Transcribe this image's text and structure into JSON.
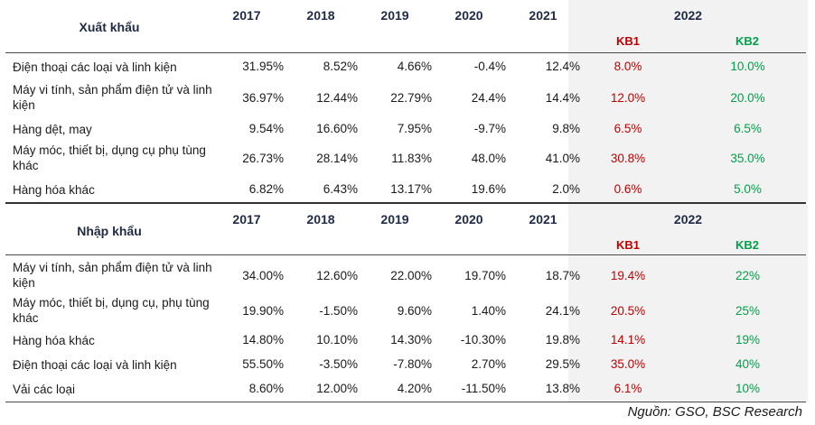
{
  "export": {
    "title": "Xuất khẩu",
    "years": [
      "2017",
      "2018",
      "2019",
      "2020",
      "2021"
    ],
    "year_2022": "2022",
    "kb1": "KB1",
    "kb2": "KB2",
    "rows": [
      {
        "label": "Điện thoại các loại và linh kiện",
        "values": [
          "31.95%",
          "8.52%",
          "4.66%",
          "-0.4%",
          "12.4%"
        ],
        "kb1": "8.0%",
        "kb2": "10.0%"
      },
      {
        "label": "Máy vi tính, sản phẩm điện tử và linh kiện",
        "values": [
          "36.97%",
          "12.44%",
          "22.79%",
          "24.4%",
          "14.4%"
        ],
        "kb1": "12.0%",
        "kb2": "20.0%"
      },
      {
        "label": "Hàng dệt, may",
        "values": [
          "9.54%",
          "16.60%",
          "7.95%",
          "-9.7%",
          "9.8%"
        ],
        "kb1": "6.5%",
        "kb2": "6.5%"
      },
      {
        "label": "Máy móc, thiết bị, dụng cụ phụ tùng khác",
        "values": [
          "26.73%",
          "28.14%",
          "11.83%",
          "48.0%",
          "41.0%"
        ],
        "kb1": "30.8%",
        "kb2": "35.0%"
      },
      {
        "label": "Hàng hóa khác",
        "values": [
          "6.82%",
          "6.43%",
          "13.17%",
          "19.6%",
          "2.0%"
        ],
        "kb1": "0.6%",
        "kb2": "5.0%"
      }
    ]
  },
  "import": {
    "title": "Nhập khẩu",
    "years": [
      "2017",
      "2018",
      "2019",
      "2020",
      "2021"
    ],
    "year_2022": "2022",
    "kb1": "KB1",
    "kb2": "KB2",
    "rows": [
      {
        "label": "Máy vi tính, sản phẩm điện tử và linh kiện",
        "values": [
          "34.00%",
          "12.60%",
          "22.00%",
          "19.70%",
          "18.7%"
        ],
        "kb1": "19.4%",
        "kb2": "22%"
      },
      {
        "label": "Máy móc, thiết bị, dụng cụ, phụ tùng khác",
        "values": [
          "19.90%",
          "-1.50%",
          "9.60%",
          "1.40%",
          "24.1%"
        ],
        "kb1": "20.5%",
        "kb2": "25%"
      },
      {
        "label": "Hàng hóa khác",
        "values": [
          "14.80%",
          "10.10%",
          "14.30%",
          "-10.30%",
          "19.8%"
        ],
        "kb1": "14.1%",
        "kb2": "19%"
      },
      {
        "label": "Điện thoại các loại và linh kiện",
        "values": [
          "55.50%",
          "-3.50%",
          "-7.80%",
          "2.70%",
          "29.5%"
        ],
        "kb1": "35.0%",
        "kb2": "40%"
      },
      {
        "label": "Vải các loại",
        "values": [
          "8.60%",
          "12.00%",
          "4.20%",
          "-11.50%",
          "13.8%"
        ],
        "kb1": "6.1%",
        "kb2": "10%"
      }
    ]
  },
  "source": "Nguồn: GSO, BSC Research"
}
